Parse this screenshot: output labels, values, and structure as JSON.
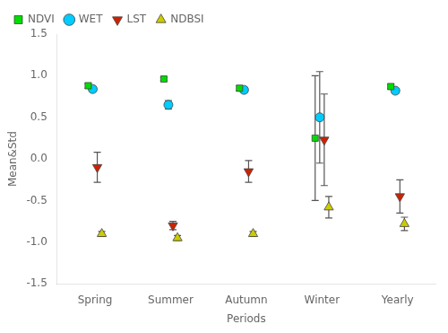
{
  "chart_data": {
    "type": "scatter",
    "x_label": "Periods",
    "y_label": "Mean&Std",
    "categories": [
      "Spring",
      "Summer",
      "Autumn",
      "Winter",
      "Yearly"
    ],
    "series": [
      {
        "name": "NDVI",
        "color": "#00DD00",
        "marker": "square",
        "values": [
          0.88,
          0.96,
          0.85,
          0.25,
          0.87
        ],
        "errors": [
          0.03,
          0.02,
          0.03,
          0.75,
          0.03
        ]
      },
      {
        "name": "WET",
        "color": "#00CCFF",
        "marker": "circle",
        "values": [
          0.84,
          0.65,
          0.83,
          0.5,
          0.82
        ],
        "errors": [
          0.03,
          0.05,
          0.03,
          0.55,
          0.03
        ]
      },
      {
        "name": "LST",
        "color": "#CC2200",
        "marker": "triangle_down",
        "values": [
          -0.1,
          -0.8,
          -0.15,
          0.23,
          -0.45
        ],
        "errors": [
          0.18,
          0.05,
          0.13,
          0.55,
          0.2
        ]
      },
      {
        "name": "NDBSI",
        "color": "#CCCC00",
        "marker": "triangle_up",
        "values": [
          -0.9,
          -0.95,
          -0.9,
          -0.58,
          -0.78
        ],
        "errors": [
          0.03,
          0.03,
          0.03,
          0.13,
          0.08
        ]
      }
    ],
    "ylim": [
      -1.5,
      1.5
    ],
    "yticks": [
      -1.5,
      {
        "value": -1.0,
        "label": "-1.0"
      },
      -0.5,
      {
        "value": 0.0,
        "label": "0.0"
      },
      0.5,
      {
        "value": 1.0,
        "label": "1.0"
      },
      1.5
    ],
    "grid": false,
    "legend": "upper left"
  }
}
